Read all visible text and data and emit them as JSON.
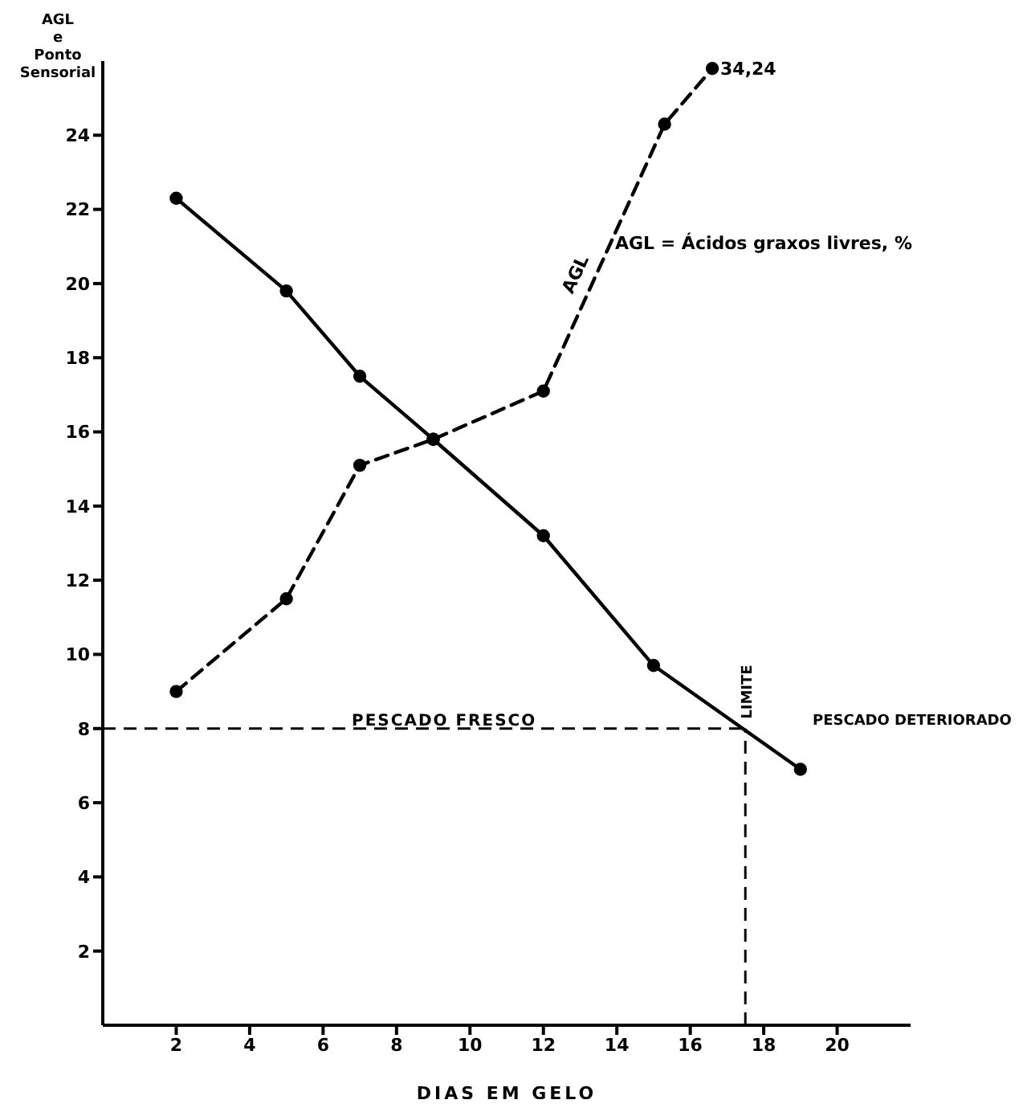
{
  "chart_data": {
    "type": "line",
    "xlabel": "DIAS EM GELO",
    "ylabel": "AGL\ne\nPonto\nSensorial",
    "series": [
      {
        "name": null,
        "color": "#000000",
        "line_style": "solid",
        "x": [
          2,
          5,
          7,
          9,
          12,
          15,
          19
        ],
        "values": [
          22.3,
          19.8,
          17.5,
          15.8,
          13.2,
          9.7,
          6.9
        ]
      },
      {
        "name": "AGL",
        "color": "#000000",
        "line_style": "dashed",
        "x": [
          2,
          5,
          7,
          9,
          12,
          15.3,
          16.6
        ],
        "values": [
          9.0,
          11.5,
          15.1,
          15.8,
          17.1,
          24.3,
          25.8
        ]
      }
    ],
    "xlim": [
      0,
      22
    ],
    "xticks": [
      2,
      4,
      6,
      8,
      10,
      12,
      14,
      16,
      18,
      20
    ],
    "ylim": [
      0,
      26
    ],
    "yticks": [
      2,
      4,
      6,
      8,
      10,
      12,
      14,
      16,
      18,
      20,
      22,
      24
    ],
    "ref_lines": [
      {
        "axis": "y",
        "value": 8,
        "label": "PESCADO FRESCO",
        "color": "#000000",
        "line_style": "dashed"
      },
      {
        "axis": "x",
        "value": 17.5,
        "label": "LIMITE",
        "color": "#000000",
        "line_style": "dashed"
      }
    ],
    "annotations": [
      {
        "text": "34,24",
        "x": 16.6,
        "y": 25.8
      },
      "AGL = Ácidos graxos livres, %",
      "PESCADO DETERIORADO"
    ],
    "marker": "circle",
    "grid": false,
    "legend": false
  }
}
